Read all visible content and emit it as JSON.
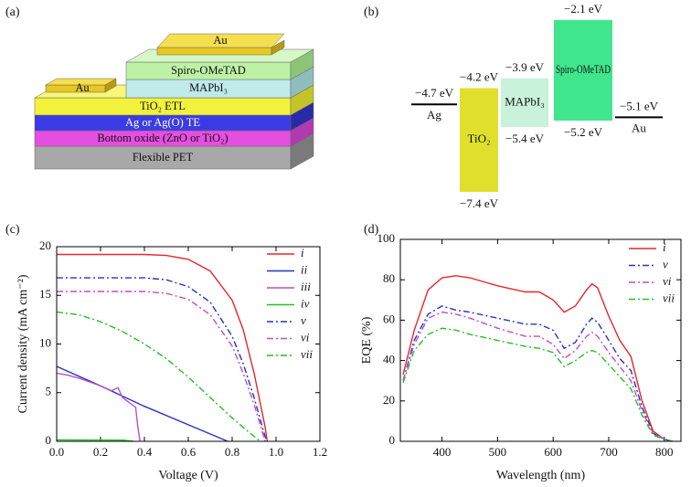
{
  "panel_labels": [
    "(a)",
    "(b)",
    "(c)",
    "(d)"
  ],
  "device": {
    "layers": [
      "Spiro-OMeTAD",
      "MAPbI₃",
      "TiO₂ ETL",
      "Ag or Ag(O) TE",
      "Bottom oxide (ZnO or TiO₂)",
      "Flexible PET"
    ],
    "top_electrode": "Au",
    "side_electrode": "Au"
  },
  "chart_data": [
    {
      "type": "levels",
      "materials": [
        {
          "name": "Ag",
          "level": -4.7,
          "level_label": "−4.7 eV",
          "color": "#000000"
        },
        {
          "name": "TiO₂",
          "top": -4.2,
          "top_label": "−4.2 eV",
          "bottom": -7.4,
          "bottom_label": "−7.4 eV",
          "color": "#e0e02c"
        },
        {
          "name": "MAPbI₃",
          "top": -3.9,
          "top_label": "−3.9 eV",
          "bottom": -5.4,
          "bottom_label": "−5.4 eV",
          "color": "#c8f2da"
        },
        {
          "name": "Spiro-OMeTAD",
          "top": -2.1,
          "top_label": "−2.1 eV",
          "bottom": -5.2,
          "bottom_label": "−5.2 eV",
          "color": "#3fe68c"
        },
        {
          "name": "Au",
          "level": -5.1,
          "level_label": "−5.1 eV",
          "color": "#000000"
        }
      ]
    },
    {
      "type": "line",
      "xlabel": "Voltage (V)",
      "ylabel": "Current density (mA cm⁻²)",
      "xlim": [
        0,
        1.2
      ],
      "xticks": [
        {
          "value": 0,
          "label": "0.0"
        },
        0.2,
        0.4,
        0.6,
        0.8,
        {
          "value": 1,
          "label": "1.0"
        },
        1.2
      ],
      "ylim": [
        0,
        20
      ],
      "yticks": [
        0,
        5,
        10,
        15,
        20
      ],
      "legend": "upper right",
      "series": [
        {
          "name": "i",
          "color": "#e8262a",
          "style": "solid",
          "x": [
            0,
            0.2,
            0.4,
            0.5,
            0.6,
            0.7,
            0.8,
            0.85,
            0.9,
            0.95,
            0.96
          ],
          "values": [
            19.2,
            19.2,
            19.2,
            19.1,
            18.7,
            17.5,
            14.5,
            11.5,
            7,
            1.5,
            0
          ]
        },
        {
          "name": "ii",
          "color": "#2433c9",
          "style": "solid",
          "x": [
            0,
            0.2,
            0.4,
            0.6,
            0.78
          ],
          "values": [
            7.7,
            5.7,
            3.6,
            1.7,
            0
          ]
        },
        {
          "name": "iii",
          "color": "#c04cc8",
          "style": "solid",
          "x": [
            0,
            0.05,
            0.1,
            0.15,
            0.2,
            0.25,
            0.28,
            0.3,
            0.33,
            0.36,
            0.37,
            0.38
          ],
          "values": [
            7,
            6.8,
            6.5,
            6.1,
            5.7,
            5.2,
            5.5,
            4.5,
            4,
            3.5,
            1.5,
            0
          ]
        },
        {
          "name": "iv",
          "color": "#22c022",
          "style": "solid",
          "x": [
            0,
            0.3,
            0.35
          ],
          "values": [
            0.15,
            0.12,
            0
          ]
        },
        {
          "name": "v",
          "color": "#2433c9",
          "style": "dashdot",
          "x": [
            0,
            0.4,
            0.5,
            0.6,
            0.7,
            0.8,
            0.85,
            0.9,
            0.95,
            0.96
          ],
          "values": [
            16.8,
            16.8,
            16.6,
            15.9,
            14.3,
            10.8,
            8,
            4.5,
            0.5,
            0
          ]
        },
        {
          "name": "vi",
          "color": "#c04cc8",
          "style": "dashdot",
          "x": [
            0,
            0.4,
            0.5,
            0.6,
            0.7,
            0.8,
            0.85,
            0.9,
            0.95
          ],
          "values": [
            15.4,
            15.4,
            15.2,
            14.6,
            13,
            9.8,
            7,
            3.8,
            0
          ]
        },
        {
          "name": "vii",
          "color": "#22c022",
          "style": "dashdot",
          "x": [
            0,
            0.1,
            0.2,
            0.3,
            0.4,
            0.5,
            0.6,
            0.7,
            0.8,
            0.9,
            0.93
          ],
          "values": [
            13.3,
            13,
            12.3,
            11.3,
            10,
            8.5,
            6.6,
            4.5,
            2.4,
            0.5,
            0
          ]
        }
      ]
    },
    {
      "type": "line",
      "xlabel": "Wavelength (nm)",
      "ylabel": "EQE (%)",
      "xlim": [
        325,
        830
      ],
      "xticks": [
        400,
        500,
        600,
        700,
        800
      ],
      "ylim": [
        0,
        100
      ],
      "yticks": [
        0,
        20,
        40,
        60,
        80,
        100
      ],
      "legend": "upper right",
      "series": [
        {
          "name": "i",
          "color": "#e8262a",
          "style": "solid",
          "x": [
            330,
            350,
            375,
            400,
            425,
            450,
            500,
            550,
            575,
            600,
            620,
            640,
            660,
            670,
            680,
            700,
            720,
            740,
            760,
            780,
            800,
            815
          ],
          "values": [
            33,
            55,
            75,
            81,
            82,
            81,
            77,
            74,
            74,
            70,
            64,
            67,
            75,
            78,
            76,
            62,
            50,
            42,
            20,
            5,
            1,
            0
          ]
        },
        {
          "name": "v",
          "color": "#2433c9",
          "style": "dashdot",
          "x": [
            330,
            350,
            375,
            400,
            425,
            450,
            500,
            550,
            575,
            600,
            620,
            640,
            660,
            670,
            680,
            700,
            720,
            740,
            760,
            780,
            800,
            815
          ],
          "values": [
            30,
            50,
            63,
            67,
            65,
            64,
            61,
            58,
            58,
            55,
            46,
            49,
            58,
            61,
            59,
            50,
            41,
            35,
            17,
            4,
            1,
            0
          ]
        },
        {
          "name": "vi",
          "color": "#c04cc8",
          "style": "dashdot",
          "x": [
            330,
            350,
            375,
            400,
            425,
            450,
            500,
            550,
            575,
            600,
            620,
            640,
            660,
            670,
            680,
            700,
            720,
            740,
            760,
            780,
            800,
            815
          ],
          "values": [
            30,
            48,
            61,
            64,
            63,
            61,
            56,
            52,
            52,
            48,
            41,
            45,
            52,
            54,
            52,
            44,
            37,
            30,
            15,
            4,
            1,
            0
          ]
        },
        {
          "name": "vii",
          "color": "#22c022",
          "style": "dashdot",
          "x": [
            330,
            350,
            375,
            400,
            425,
            450,
            500,
            550,
            575,
            600,
            620,
            640,
            660,
            670,
            680,
            700,
            720,
            740,
            760,
            780,
            800,
            815
          ],
          "values": [
            29,
            45,
            53,
            56,
            55,
            53,
            50,
            47,
            46,
            44,
            37,
            40,
            44,
            45,
            44,
            38,
            32,
            26,
            13,
            3,
            1,
            0
          ]
        }
      ]
    }
  ]
}
